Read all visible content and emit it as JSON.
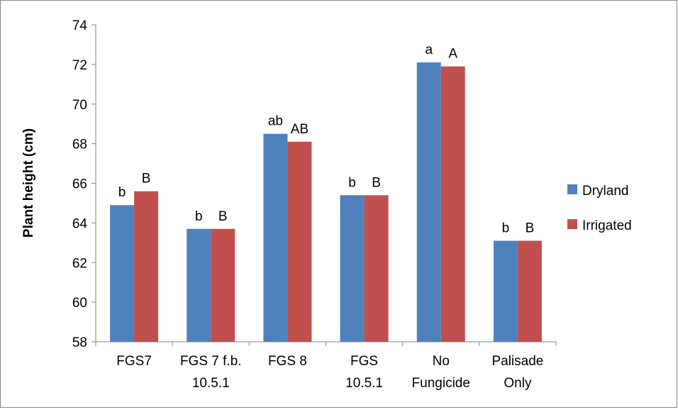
{
  "chart_data": {
    "type": "bar",
    "title": "",
    "xlabel": "",
    "ylabel": "Plant height (cm)",
    "ylim": [
      58,
      74
    ],
    "yticks": [
      58,
      60,
      62,
      64,
      66,
      68,
      70,
      72,
      74
    ],
    "categories": [
      [
        "FGS7"
      ],
      [
        "FGS 7 f.b.",
        "10.5.1"
      ],
      [
        "FGS 8"
      ],
      [
        "FGS",
        "10.5.1"
      ],
      [
        "No",
        "Fungicide"
      ],
      [
        "Palisade",
        "Only"
      ]
    ],
    "series": [
      {
        "name": "Dryland",
        "color": "#4F81BD",
        "values": [
          64.9,
          63.7,
          68.5,
          65.4,
          72.1,
          63.1
        ],
        "labels": [
          "b",
          "b",
          "ab",
          "b",
          "a",
          "b"
        ]
      },
      {
        "name": "Irrigated",
        "color": "#C0504D",
        "values": [
          65.6,
          63.7,
          68.1,
          65.4,
          71.9,
          63.1
        ],
        "labels": [
          "B",
          "B",
          "AB",
          "B",
          "A",
          "B"
        ]
      }
    ],
    "legend_position": "right",
    "grid": false
  }
}
